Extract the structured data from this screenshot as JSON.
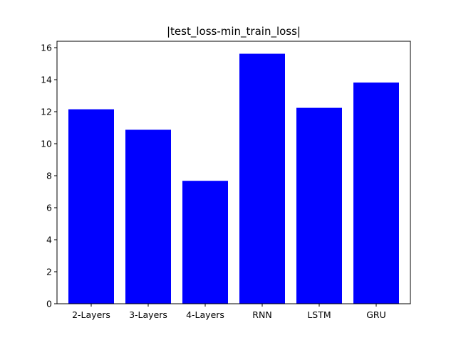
{
  "chart_data": {
    "type": "bar",
    "title": "|test_loss-min_train_loss|",
    "xlabel": "",
    "ylabel": "",
    "categories": [
      "2-Layers",
      "3-Layers",
      "4-Layers",
      "RNN",
      "LSTM",
      "GRU"
    ],
    "values": [
      12.15,
      10.87,
      7.68,
      15.62,
      12.24,
      13.82
    ],
    "ylim": [
      0,
      16.4
    ],
    "yticks": [
      "0",
      "2",
      "4",
      "6",
      "8",
      "10",
      "12",
      "14",
      "16"
    ],
    "bar_color": "#0000ff",
    "grid": false,
    "legend": "none"
  }
}
